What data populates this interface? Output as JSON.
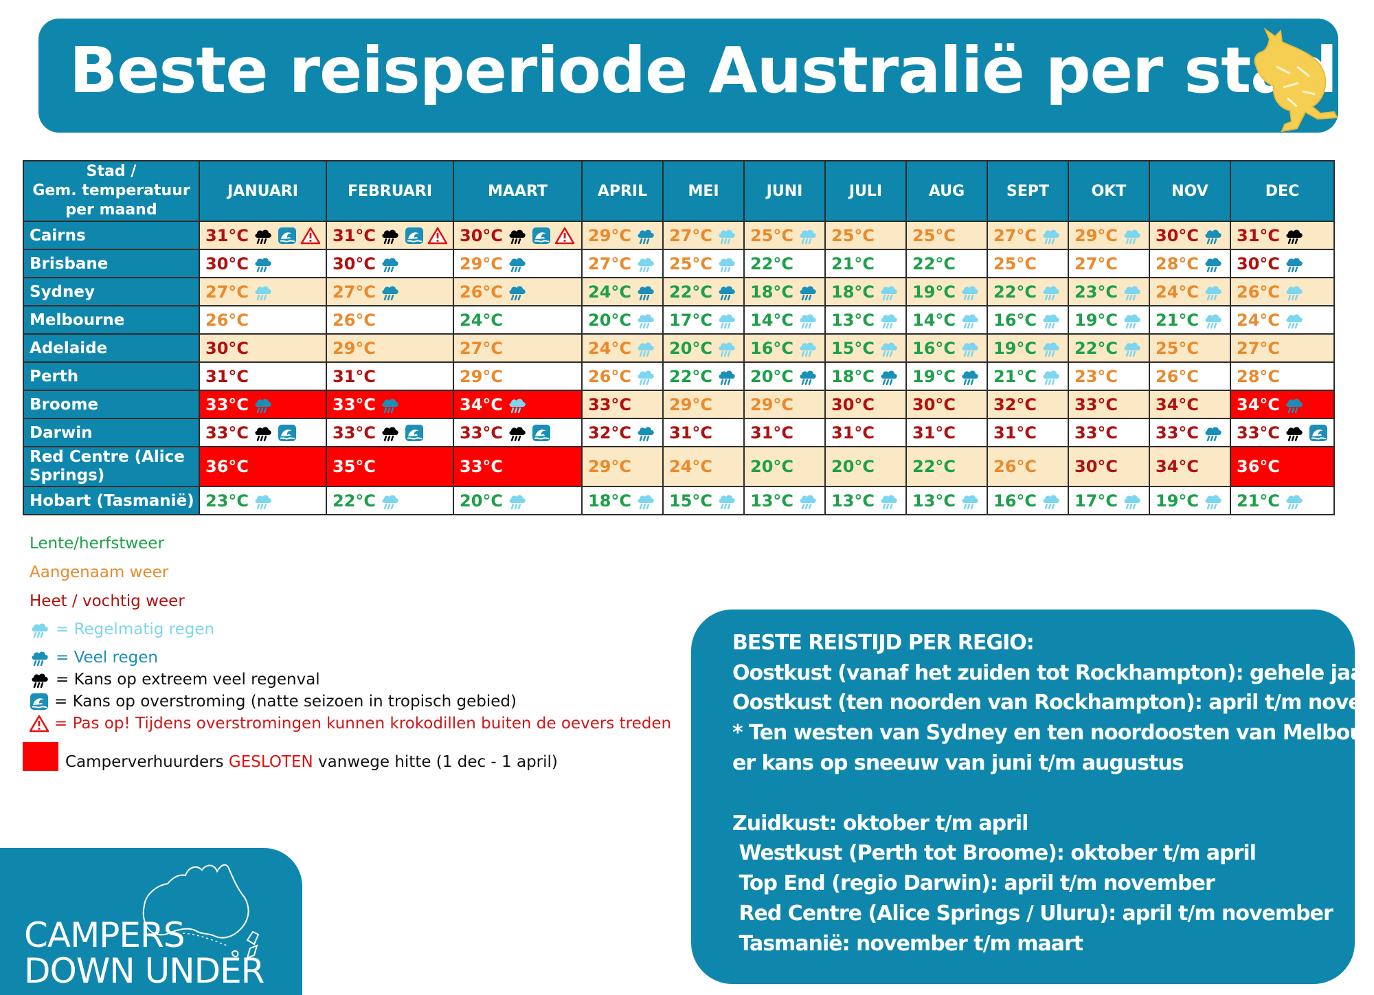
{
  "title": "Beste reisperiode Australië per stad:",
  "table": {
    "header_label_lines": [
      "Stad /",
      "Gem. temperatuur",
      "per maand"
    ],
    "months": [
      "JANUARI",
      "FEBRUARI",
      "MAART",
      "APRIL",
      "MEI",
      "JUNI",
      "JULI",
      "AUG",
      "SEPT",
      "OKT",
      "NOV",
      "DEC"
    ],
    "rows": [
      {
        "city": "Cairns",
        "cells": [
          {
            "t": "31°C",
            "c": "hot",
            "i": [
              "extreme-rain",
              "flood",
              "warning"
            ]
          },
          {
            "t": "31°C",
            "c": "hot",
            "i": [
              "extreme-rain",
              "flood",
              "warning"
            ]
          },
          {
            "t": "30°C",
            "c": "hot",
            "i": [
              "extreme-rain",
              "flood",
              "warning"
            ]
          },
          {
            "t": "29°C",
            "c": "warm",
            "i": [
              "heavy-rain"
            ]
          },
          {
            "t": "27°C",
            "c": "warm",
            "i": [
              "regular-rain"
            ]
          },
          {
            "t": "25°C",
            "c": "warm",
            "i": [
              "regular-rain"
            ]
          },
          {
            "t": "25°C",
            "c": "warm",
            "i": []
          },
          {
            "t": "25°C",
            "c": "warm",
            "i": []
          },
          {
            "t": "27°C",
            "c": "warm",
            "i": [
              "regular-rain"
            ]
          },
          {
            "t": "29°C",
            "c": "warm",
            "i": [
              "regular-rain"
            ]
          },
          {
            "t": "30°C",
            "c": "hot",
            "i": [
              "heavy-rain"
            ]
          },
          {
            "t": "31°C",
            "c": "hot",
            "i": [
              "extreme-rain"
            ]
          }
        ]
      },
      {
        "city": "Brisbane",
        "cells": [
          {
            "t": "30°C",
            "c": "hot",
            "i": [
              "heavy-rain"
            ]
          },
          {
            "t": "30°C",
            "c": "hot",
            "i": [
              "heavy-rain"
            ]
          },
          {
            "t": "29°C",
            "c": "warm",
            "i": [
              "heavy-rain"
            ]
          },
          {
            "t": "27°C",
            "c": "warm",
            "i": [
              "regular-rain"
            ]
          },
          {
            "t": "25°C",
            "c": "warm",
            "i": [
              "regular-rain"
            ]
          },
          {
            "t": "22°C",
            "c": "spring",
            "i": []
          },
          {
            "t": "21°C",
            "c": "spring",
            "i": []
          },
          {
            "t": "22°C",
            "c": "spring",
            "i": []
          },
          {
            "t": "25°C",
            "c": "warm",
            "i": []
          },
          {
            "t": "27°C",
            "c": "warm",
            "i": []
          },
          {
            "t": "28°C",
            "c": "warm",
            "i": [
              "heavy-rain"
            ]
          },
          {
            "t": "30°C",
            "c": "hot",
            "i": [
              "heavy-rain"
            ]
          }
        ]
      },
      {
        "city": "Sydney",
        "cells": [
          {
            "t": "27°C",
            "c": "warm",
            "i": [
              "regular-rain"
            ]
          },
          {
            "t": "27°C",
            "c": "warm",
            "i": [
              "heavy-rain"
            ]
          },
          {
            "t": "26°C",
            "c": "warm",
            "i": [
              "heavy-rain"
            ]
          },
          {
            "t": "24°C",
            "c": "spring",
            "i": [
              "heavy-rain"
            ]
          },
          {
            "t": "22°C",
            "c": "spring",
            "i": [
              "heavy-rain"
            ]
          },
          {
            "t": "18°C",
            "c": "spring",
            "i": [
              "heavy-rain"
            ]
          },
          {
            "t": "18°C",
            "c": "spring",
            "i": [
              "regular-rain"
            ]
          },
          {
            "t": "19°C",
            "c": "spring",
            "i": [
              "regular-rain"
            ]
          },
          {
            "t": "22°C",
            "c": "spring",
            "i": [
              "regular-rain"
            ]
          },
          {
            "t": "23°C",
            "c": "spring",
            "i": [
              "regular-rain"
            ]
          },
          {
            "t": "24°C",
            "c": "warm",
            "i": [
              "regular-rain"
            ]
          },
          {
            "t": "26°C",
            "c": "warm",
            "i": [
              "regular-rain"
            ]
          }
        ]
      },
      {
        "city": "Melbourne",
        "cells": [
          {
            "t": "26°C",
            "c": "warm",
            "i": []
          },
          {
            "t": "26°C",
            "c": "warm",
            "i": []
          },
          {
            "t": "24°C",
            "c": "spring",
            "i": []
          },
          {
            "t": "20°C",
            "c": "spring",
            "i": [
              "regular-rain"
            ]
          },
          {
            "t": "17°C",
            "c": "spring",
            "i": [
              "regular-rain"
            ]
          },
          {
            "t": "14°C",
            "c": "spring",
            "i": [
              "regular-rain"
            ]
          },
          {
            "t": "13°C",
            "c": "spring",
            "i": [
              "regular-rain"
            ]
          },
          {
            "t": "14°C",
            "c": "spring",
            "i": [
              "regular-rain"
            ]
          },
          {
            "t": "16°C",
            "c": "spring",
            "i": [
              "regular-rain"
            ]
          },
          {
            "t": "19°C",
            "c": "spring",
            "i": [
              "regular-rain"
            ]
          },
          {
            "t": "21°C",
            "c": "spring",
            "i": [
              "regular-rain"
            ]
          },
          {
            "t": "24°C",
            "c": "warm",
            "i": [
              "regular-rain"
            ]
          }
        ]
      },
      {
        "city": "Adelaide",
        "cells": [
          {
            "t": "30°C",
            "c": "hot",
            "i": []
          },
          {
            "t": "29°C",
            "c": "warm",
            "i": []
          },
          {
            "t": "27°C",
            "c": "warm",
            "i": []
          },
          {
            "t": "24°C",
            "c": "warm",
            "i": [
              "regular-rain"
            ]
          },
          {
            "t": "20°C",
            "c": "spring",
            "i": [
              "regular-rain"
            ]
          },
          {
            "t": "16°C",
            "c": "spring",
            "i": [
              "regular-rain"
            ]
          },
          {
            "t": "15°C",
            "c": "spring",
            "i": [
              "regular-rain"
            ]
          },
          {
            "t": "16°C",
            "c": "spring",
            "i": [
              "regular-rain"
            ]
          },
          {
            "t": "19°C",
            "c": "spring",
            "i": [
              "regular-rain"
            ]
          },
          {
            "t": "22°C",
            "c": "spring",
            "i": [
              "regular-rain"
            ]
          },
          {
            "t": "25°C",
            "c": "warm",
            "i": []
          },
          {
            "t": "27°C",
            "c": "warm",
            "i": []
          }
        ]
      },
      {
        "city": "Perth",
        "cells": [
          {
            "t": "31°C",
            "c": "hot",
            "i": []
          },
          {
            "t": "31°C",
            "c": "hot",
            "i": []
          },
          {
            "t": "29°C",
            "c": "warm",
            "i": []
          },
          {
            "t": "26°C",
            "c": "warm",
            "i": [
              "regular-rain"
            ]
          },
          {
            "t": "22°C",
            "c": "spring",
            "i": [
              "heavy-rain"
            ]
          },
          {
            "t": "20°C",
            "c": "spring",
            "i": [
              "heavy-rain"
            ]
          },
          {
            "t": "18°C",
            "c": "spring",
            "i": [
              "heavy-rain"
            ]
          },
          {
            "t": "19°C",
            "c": "spring",
            "i": [
              "heavy-rain"
            ]
          },
          {
            "t": "21°C",
            "c": "spring",
            "i": [
              "regular-rain"
            ]
          },
          {
            "t": "23°C",
            "c": "warm",
            "i": []
          },
          {
            "t": "26°C",
            "c": "warm",
            "i": []
          },
          {
            "t": "28°C",
            "c": "warm",
            "i": []
          }
        ]
      },
      {
        "city": "Broome",
        "cells": [
          {
            "t": "33°C",
            "c": "hot",
            "i": [
              "heavy-rain"
            ],
            "closed": true
          },
          {
            "t": "33°C",
            "c": "hot",
            "i": [
              "heavy-rain"
            ],
            "closed": true
          },
          {
            "t": "34°C",
            "c": "hot",
            "i": [
              "regular-rain"
            ],
            "closed": true
          },
          {
            "t": "33°C",
            "c": "hot",
            "i": []
          },
          {
            "t": "29°C",
            "c": "warm",
            "i": []
          },
          {
            "t": "29°C",
            "c": "warm",
            "i": []
          },
          {
            "t": "30°C",
            "c": "hot",
            "i": []
          },
          {
            "t": "30°C",
            "c": "hot",
            "i": []
          },
          {
            "t": "32°C",
            "c": "hot",
            "i": []
          },
          {
            "t": "33°C",
            "c": "hot",
            "i": []
          },
          {
            "t": "34°C",
            "c": "hot",
            "i": []
          },
          {
            "t": "34°C",
            "c": "hot",
            "i": [
              "heavy-rain"
            ],
            "closed": true
          }
        ]
      },
      {
        "city": "Darwin",
        "cells": [
          {
            "t": "33°C",
            "c": "hot",
            "i": [
              "extreme-rain",
              "flood"
            ]
          },
          {
            "t": "33°C",
            "c": "hot",
            "i": [
              "extreme-rain",
              "flood"
            ]
          },
          {
            "t": "33°C",
            "c": "hot",
            "i": [
              "extreme-rain",
              "flood"
            ]
          },
          {
            "t": "32°C",
            "c": "hot",
            "i": [
              "heavy-rain"
            ]
          },
          {
            "t": "31°C",
            "c": "hot",
            "i": []
          },
          {
            "t": "31°C",
            "c": "hot",
            "i": []
          },
          {
            "t": "31°C",
            "c": "hot",
            "i": []
          },
          {
            "t": "31°C",
            "c": "hot",
            "i": []
          },
          {
            "t": "31°C",
            "c": "hot",
            "i": []
          },
          {
            "t": "33°C",
            "c": "hot",
            "i": []
          },
          {
            "t": "33°C",
            "c": "hot",
            "i": [
              "heavy-rain"
            ]
          },
          {
            "t": "33°C",
            "c": "hot",
            "i": [
              "extreme-rain",
              "flood"
            ]
          }
        ]
      },
      {
        "city": "Red Centre (Alice Springs)",
        "cells": [
          {
            "t": "36°C",
            "c": "hot",
            "i": [],
            "closed": true
          },
          {
            "t": "35°C",
            "c": "hot",
            "i": [],
            "closed": true
          },
          {
            "t": "33°C",
            "c": "hot",
            "i": [],
            "closed": true
          },
          {
            "t": "29°C",
            "c": "warm",
            "i": []
          },
          {
            "t": "24°C",
            "c": "warm",
            "i": []
          },
          {
            "t": "20°C",
            "c": "spring",
            "i": []
          },
          {
            "t": "20°C",
            "c": "spring",
            "i": []
          },
          {
            "t": "22°C",
            "c": "spring",
            "i": []
          },
          {
            "t": "26°C",
            "c": "warm",
            "i": []
          },
          {
            "t": "30°C",
            "c": "hot",
            "i": []
          },
          {
            "t": "34°C",
            "c": "hot",
            "i": []
          },
          {
            "t": "36°C",
            "c": "hot",
            "i": [],
            "closed": true
          }
        ]
      },
      {
        "city": "Hobart (Tasmanië)",
        "cells": [
          {
            "t": "23°C",
            "c": "spring",
            "i": [
              "regular-rain"
            ]
          },
          {
            "t": "22°C",
            "c": "spring",
            "i": [
              "regular-rain"
            ]
          },
          {
            "t": "20°C",
            "c": "spring",
            "i": [
              "regular-rain"
            ]
          },
          {
            "t": "18°C",
            "c": "spring",
            "i": [
              "regular-rain"
            ]
          },
          {
            "t": "15°C",
            "c": "spring",
            "i": [
              "regular-rain"
            ]
          },
          {
            "t": "13°C",
            "c": "spring",
            "i": [
              "regular-rain"
            ]
          },
          {
            "t": "13°C",
            "c": "spring",
            "i": [
              "regular-rain"
            ]
          },
          {
            "t": "13°C",
            "c": "spring",
            "i": [
              "regular-rain"
            ]
          },
          {
            "t": "16°C",
            "c": "spring",
            "i": [
              "regular-rain"
            ]
          },
          {
            "t": "17°C",
            "c": "spring",
            "i": [
              "regular-rain"
            ]
          },
          {
            "t": "19°C",
            "c": "spring",
            "i": [
              "regular-rain"
            ]
          },
          {
            "t": "21°C",
            "c": "spring",
            "i": [
              "regular-rain"
            ]
          }
        ]
      }
    ]
  },
  "colors": {
    "brand_blue": "#0f87ad",
    "spring": "#1ea04a",
    "warm": "#e98a2d",
    "hot": "#b01010",
    "closed": "#ff0000",
    "alt_row": "#fbe8c5",
    "regular_rain": "#7dd6ef",
    "heavy_rain": "#1a8fb8",
    "extreme_rain": "#000000"
  },
  "legend": {
    "spring": "Lente/herfstweer",
    "warm": "Aangenaam weer",
    "hot": "Heet / vochtig weer",
    "regular_rain": "= Regelmatig regen",
    "heavy_rain": "= Veel regen",
    "extreme_rain": "= Kans op extreem veel regenval",
    "flood": "= Kans op overstroming (natte seizoen in tropisch gebied)",
    "warning": "= Pas op! Tijdens overstromingen kunnen krokodillen buiten de oevers treden",
    "closed_pre": "Camperverhuurders ",
    "closed_red": "GESLOTEN",
    "closed_post": " vanwege hitte (1 dec - 1 april)"
  },
  "info": {
    "lines": [
      "BESTE REISTIJD PER REGIO:",
      "Oostkust (vanaf het zuiden tot Rockhampton): gehele jaar",
      "Oostkust (ten noorden van Rockhampton): april t/m november",
      "* Ten westen van Sydney en ten noordoosten van Melbourne is",
      "er kans op sneeuw van juni t/m augustus",
      "Zuidkust: oktober t/m april",
      " Westkust (Perth tot Broome): oktober t/m april",
      " Top End (regio Darwin): april t/m november",
      " Red Centre (Alice Springs / Uluru): april t/m november",
      " Tasmanië: november t/m maart"
    ]
  },
  "logo": {
    "line1": "CAMPERS",
    "line2": "DOWN UNDER"
  }
}
